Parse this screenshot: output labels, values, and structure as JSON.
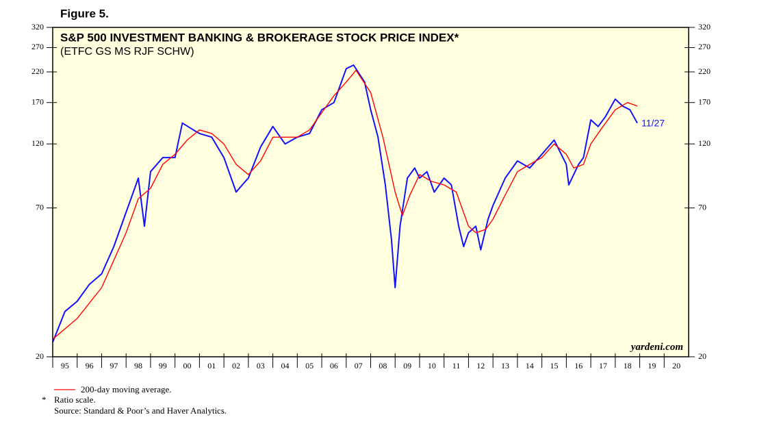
{
  "chart_data": {
    "type": "line",
    "figure_label": "Figure 5.",
    "title": "S&P 500 INVESTMENT BANKING & BROKERAGE STOCK PRICE INDEX*",
    "subtitle": "(ETFC GS MS RJF SCHW)",
    "end_label": "11/27",
    "watermark": "yardeni.com",
    "note_marker": "*",
    "notes": [
      "Ratio scale.",
      "Source: Standard & Poor’s and Haver Analytics."
    ],
    "log_scale": true,
    "xlim": [
      1995,
      2021
    ],
    "xticks": [
      {
        "value": 1995,
        "label": "95"
      },
      {
        "value": 1996,
        "label": "96"
      },
      {
        "value": 1997,
        "label": "97"
      },
      {
        "value": 1998,
        "label": "98"
      },
      {
        "value": 1999,
        "label": "99"
      },
      {
        "value": 2000,
        "label": "00"
      },
      {
        "value": 2001,
        "label": "01"
      },
      {
        "value": 2002,
        "label": "02"
      },
      {
        "value": 2003,
        "label": "03"
      },
      {
        "value": 2004,
        "label": "04"
      },
      {
        "value": 2005,
        "label": "05"
      },
      {
        "value": 2006,
        "label": "06"
      },
      {
        "value": 2007,
        "label": "07"
      },
      {
        "value": 2008,
        "label": "08"
      },
      {
        "value": 2009,
        "label": "09"
      },
      {
        "value": 2010,
        "label": "10"
      },
      {
        "value": 2011,
        "label": "11"
      },
      {
        "value": 2012,
        "label": "12"
      },
      {
        "value": 2013,
        "label": "13"
      },
      {
        "value": 2014,
        "label": "14"
      },
      {
        "value": 2015,
        "label": "15"
      },
      {
        "value": 2016,
        "label": "16"
      },
      {
        "value": 2017,
        "label": "17"
      },
      {
        "value": 2018,
        "label": "18"
      },
      {
        "value": 2019,
        "label": "19"
      },
      {
        "value": 2020,
        "label": "20"
      }
    ],
    "ylim": [
      20,
      320
    ],
    "yticks": [
      20,
      70,
      120,
      170,
      220,
      270,
      320
    ],
    "background": "#ffffe0",
    "series": [
      {
        "color": "#1010ff",
        "x": [
          1995.0,
          1995.5,
          1996.0,
          1996.5,
          1997.0,
          1997.5,
          1998.0,
          1998.5,
          1998.75,
          1999.0,
          1999.5,
          2000.0,
          2000.3,
          2000.75,
          2001.0,
          2001.5,
          2002.0,
          2002.5,
          2002.75,
          2003.0,
          2003.5,
          2004.0,
          2004.5,
          2005.0,
          2005.5,
          2006.0,
          2006.5,
          2007.0,
          2007.3,
          2007.75,
          2008.0,
          2008.3,
          2008.6,
          2008.85,
          2009.0,
          2009.2,
          2009.5,
          2009.8,
          2010.0,
          2010.3,
          2010.6,
          2011.0,
          2011.3,
          2011.6,
          2011.8,
          2012.0,
          2012.3,
          2012.5,
          2012.8,
          2013.0,
          2013.5,
          2014.0,
          2014.5,
          2015.0,
          2015.5,
          2016.0,
          2016.1,
          2016.5,
          2016.7,
          2017.0,
          2017.3,
          2017.6,
          2018.0,
          2018.3,
          2018.6,
          2018.9
        ],
        "values": [
          22.6,
          29.3,
          31.9,
          36.8,
          40.2,
          50.6,
          67.5,
          90,
          60,
          95,
          107,
          107,
          143,
          135,
          131,
          127,
          107,
          80,
          85,
          90,
          117,
          139,
          120,
          127,
          131,
          160,
          170,
          226,
          233,
          202,
          160,
          127,
          85,
          53.6,
          35.8,
          60,
          90,
          98,
          90,
          95,
          80,
          90,
          85,
          60,
          50.6,
          56.8,
          60,
          49.2,
          63.7,
          71.5,
          90,
          104,
          98,
          110,
          124,
          101,
          85,
          101,
          107,
          147,
          139,
          151,
          175,
          165,
          160,
          143
        ]
      },
      {
        "name": "200-day moving average.",
        "color": "#ff0000",
        "x": [
          1995.0,
          1996.0,
          1997.0,
          1998.0,
          1998.5,
          1999.0,
          1999.5,
          2000.0,
          2000.5,
          2001.0,
          2001.5,
          2002.0,
          2002.5,
          2003.0,
          2003.5,
          2004.0,
          2004.5,
          2005.0,
          2005.5,
          2006.0,
          2006.5,
          2007.0,
          2007.4,
          2008.0,
          2008.5,
          2009.0,
          2009.3,
          2009.6,
          2010.0,
          2010.5,
          2011.0,
          2011.5,
          2012.0,
          2012.3,
          2012.7,
          2013.0,
          2013.5,
          2014.0,
          2014.5,
          2015.0,
          2015.5,
          2016.0,
          2016.3,
          2016.7,
          2017.0,
          2017.5,
          2018.0,
          2018.5,
          2018.9
        ],
        "values": [
          23.2,
          27.6,
          35.8,
          56.8,
          75.7,
          82.6,
          101,
          110,
          124,
          135,
          131,
          120,
          101,
          92.7,
          104,
          127,
          127,
          127,
          135,
          156,
          180,
          202,
          223,
          185,
          127,
          80,
          65.6,
          78,
          92.7,
          87.5,
          85,
          80,
          60,
          56.8,
          58.4,
          63.7,
          78,
          95,
          101,
          107,
          120,
          110,
          98,
          101,
          120,
          139,
          160,
          170,
          165
        ]
      }
    ]
  }
}
